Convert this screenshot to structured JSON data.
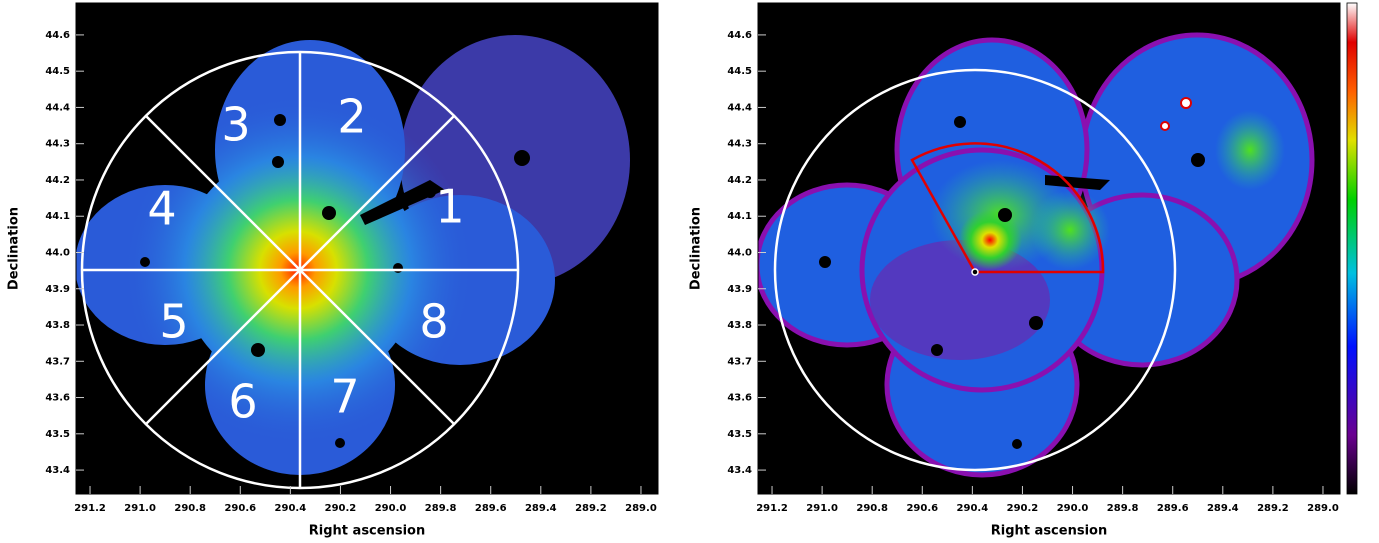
{
  "chart_data": [
    {
      "type": "image",
      "x_label": "Right ascension",
      "y_label": "Declination",
      "xlim": [
        291.256,
        288.932
      ],
      "ylim": [
        43.334,
        44.688
      ],
      "xticks": [
        291.2,
        {
          "value": 291,
          "label": "291.0"
        },
        290.8,
        290.6,
        290.4,
        290.2,
        {
          "value": 290,
          "label": "290.0"
        },
        289.8,
        289.6,
        289.4,
        289.2,
        {
          "value": 289,
          "label": "289.0"
        }
      ],
      "yticks": [
        43.4,
        43.5,
        43.6,
        43.7,
        43.8,
        43.9,
        {
          "value": 44,
          "label": "44.0"
        },
        44.1,
        44.2,
        44.3,
        44.4,
        44.5,
        44.6
      ],
      "annotations": [
        "1",
        "2",
        "3",
        "4",
        "5",
        "6",
        "7",
        "8"
      ]
    },
    {
      "type": "image",
      "x_label": "Right ascension",
      "y_label": "Declination",
      "xlim": [
        291.256,
        288.932
      ],
      "ylim": [
        43.334,
        44.688
      ],
      "xticks": [
        291.2,
        {
          "value": 291,
          "label": "291.0"
        },
        290.8,
        290.6,
        290.4,
        290.2,
        {
          "value": 290,
          "label": "290.0"
        },
        289.8,
        289.6,
        289.4,
        289.2,
        {
          "value": 289,
          "label": "289.0"
        }
      ],
      "yticks": [
        43.4,
        43.5,
        43.6,
        43.7,
        43.8,
        43.9,
        {
          "value": 44,
          "label": "44.0"
        },
        44.1,
        44.2,
        44.3,
        44.4,
        44.5,
        44.6
      ]
    }
  ]
}
